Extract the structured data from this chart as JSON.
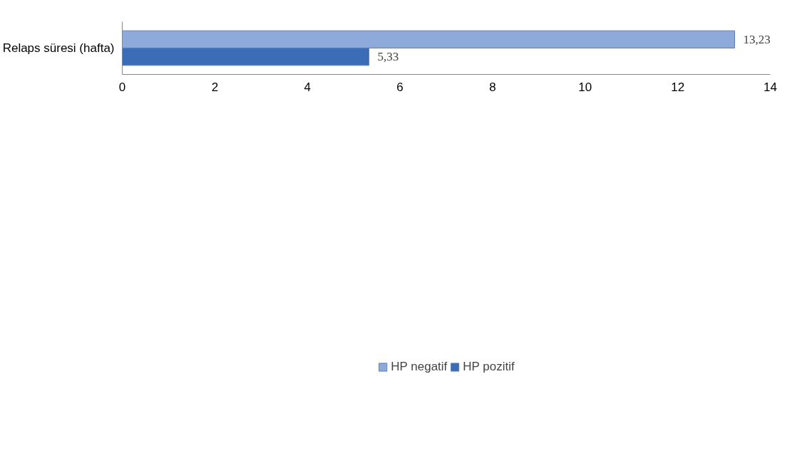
{
  "chart_data": {
    "type": "bar",
    "orientation": "horizontal",
    "categories": [
      "Relaps süresi (hafta)"
    ],
    "series": [
      {
        "name": "HP negatif",
        "color": "#8eaadb",
        "values": [
          13.23
        ],
        "value_labels": [
          "13,23"
        ]
      },
      {
        "name": "HP pozitif",
        "color": "#3a6db5",
        "values": [
          5.33
        ],
        "value_labels": [
          "5,33"
        ]
      }
    ],
    "xlim": [
      0,
      14
    ],
    "xticks": [
      0,
      2,
      4,
      6,
      8,
      10,
      12,
      14
    ],
    "grid": false,
    "legend": "bottom"
  }
}
